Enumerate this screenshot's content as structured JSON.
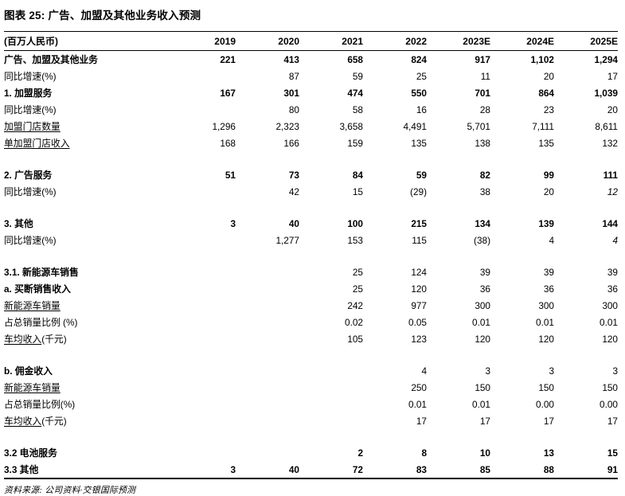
{
  "title": "图表 25: 广告、加盟及其他业务收入预测",
  "source": "资料来源: 公司资料·交银国际预测",
  "table": {
    "unit_label": "(百万人民币)",
    "columns": [
      "2019",
      "2020",
      "2021",
      "2022",
      "2023E",
      "2024E",
      "2025E"
    ],
    "rows": [
      {
        "label": "广告、加盟及其他业务",
        "label_style": "bold",
        "value_style": "bold",
        "values": [
          "221",
          "413",
          "658",
          "824",
          "917",
          "1,102",
          "1,294"
        ]
      },
      {
        "label": "同比增速(%)",
        "values": [
          "",
          "87",
          "59",
          "25",
          "11",
          "20",
          "17"
        ]
      },
      {
        "label": "1. 加盟服务",
        "label_style": "bold",
        "value_style": "bold",
        "values": [
          "167",
          "301",
          "474",
          "550",
          "701",
          "864",
          "1,039"
        ]
      },
      {
        "label": "同比增速(%)",
        "values": [
          "",
          "80",
          "58",
          "16",
          "28",
          "23",
          "20"
        ]
      },
      {
        "label": "加盟门店数量",
        "label_style": "underline",
        "values": [
          "1,296",
          "2,323",
          "3,658",
          "4,491",
          "5,701",
          "7,111",
          "8,611"
        ]
      },
      {
        "label": "单加盟门店收入",
        "label_style": "underline",
        "values": [
          "168",
          "166",
          "159",
          "135",
          "138",
          "135",
          "132"
        ]
      },
      {
        "blank": true
      },
      {
        "label": "2. 广告服务",
        "label_style": "bold",
        "value_style": "bold",
        "values": [
          "51",
          "73",
          "84",
          "59",
          "82",
          "99",
          "111"
        ]
      },
      {
        "label": "同比增速(%)",
        "italic_indices": [
          6
        ],
        "values": [
          "",
          "42",
          "15",
          "(29)",
          "38",
          "20",
          "12"
        ]
      },
      {
        "blank": true
      },
      {
        "label": "3. 其他",
        "label_style": "bold",
        "value_style": "bold",
        "values": [
          "3",
          "40",
          "100",
          "215",
          "134",
          "139",
          "144"
        ]
      },
      {
        "label": "同比增速(%)",
        "italic_indices": [
          6
        ],
        "values": [
          "",
          "1,277",
          "153",
          "115",
          "(38)",
          "4",
          "4"
        ]
      },
      {
        "blank": true
      },
      {
        "label": "3.1. 新能源车销售",
        "label_style": "bold",
        "values": [
          "",
          "",
          "25",
          "124",
          "39",
          "39",
          "39"
        ]
      },
      {
        "label": "a. 买断销售收入",
        "label_style": "bold",
        "values": [
          "",
          "",
          "25",
          "120",
          "36",
          "36",
          "36"
        ]
      },
      {
        "label": "新能源车销量",
        "label_style": "underline",
        "values": [
          "",
          "",
          "242",
          "977",
          "300",
          "300",
          "300"
        ]
      },
      {
        "label": "占总销量比例 (%)",
        "values": [
          "",
          "",
          "0.02",
          "0.05",
          "0.01",
          "0.01",
          "0.01"
        ]
      },
      {
        "label": "车均收入",
        "label_suffix": "(千元)",
        "label_style": "underline",
        "values": [
          "",
          "",
          "105",
          "123",
          "120",
          "120",
          "120"
        ]
      },
      {
        "blank": true
      },
      {
        "label": "b. 佣金收入",
        "label_style": "bold",
        "values": [
          "",
          "",
          "",
          "4",
          "3",
          "3",
          "3"
        ]
      },
      {
        "label": "新能源车销量",
        "label_style": "underline",
        "values": [
          "",
          "",
          "",
          "250",
          "150",
          "150",
          "150"
        ]
      },
      {
        "label": "占总销量比例(%)",
        "values": [
          "",
          "",
          "",
          "0.01",
          "0.01",
          "0.00",
          "0.00"
        ]
      },
      {
        "label": "车均收入",
        "label_suffix": "(千元)",
        "label_style": "underline",
        "values": [
          "",
          "",
          "",
          "17",
          "17",
          "17",
          "17"
        ]
      },
      {
        "blank": true
      },
      {
        "label": "3.2 电池服务",
        "label_style": "bold",
        "value_style": "bold",
        "values": [
          "",
          "",
          "2",
          "8",
          "10",
          "13",
          "15"
        ]
      },
      {
        "label": "3.3 其他",
        "label_style": "bold",
        "value_style": "bold",
        "values": [
          "3",
          "40",
          "72",
          "83",
          "85",
          "88",
          "91"
        ]
      }
    ]
  }
}
